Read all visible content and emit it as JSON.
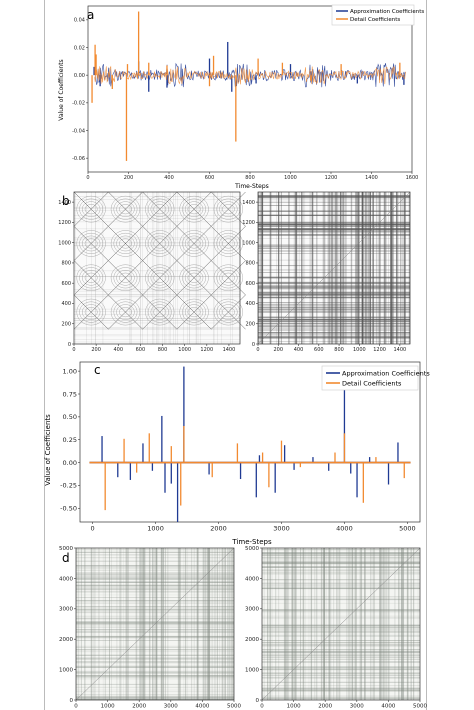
{
  "panel_letters": [
    "a",
    "b",
    "c",
    "d"
  ],
  "colors": {
    "approx": "#1f3a93",
    "detail": "#f28a30",
    "grid_dark": "#555555",
    "grid_light": "#cccccc"
  },
  "chart_data": [
    {
      "id": "a",
      "type": "line",
      "xlabel": "Time-Steps",
      "ylabel": "Value of Coefficients",
      "xlim": [
        0,
        1600
      ],
      "ylim": [
        -0.07,
        0.05
      ],
      "xticks": [
        0,
        200,
        400,
        600,
        800,
        1000,
        1200,
        1400,
        1600
      ],
      "xtick_labels": [
        "0",
        "200",
        "400",
        "600",
        "800",
        "1000",
        "1200",
        "1400",
        "1600"
      ],
      "yticks": [
        -0.06,
        -0.04,
        -0.02,
        0.0,
        0.02,
        0.04
      ],
      "ytick_labels": [
        "-0.06",
        "-0.04",
        "-0.02",
        "0.00",
        "0.02",
        "0.04"
      ],
      "legend": {
        "position": "top-right",
        "entries": [
          "Approximation Coefficients",
          "Detail Coefficients"
        ]
      },
      "series": [
        {
          "name": "Approximation Coefficients",
          "color": "#1f3a93",
          "spikes": [
            [
              30,
              0.006
            ],
            [
              60,
              -0.008
            ],
            [
              250,
              0.01
            ],
            [
              300,
              -0.012
            ],
            [
              390,
              -0.009
            ],
            [
              600,
              0.012
            ],
            [
              690,
              0.024
            ],
            [
              710,
              -0.012
            ],
            [
              830,
              -0.006
            ],
            [
              1000,
              0.008
            ],
            [
              1330,
              -0.006
            ],
            [
              1560,
              -0.007
            ]
          ],
          "baseline_noise": 0.004
        },
        {
          "name": "Detail Coefficients",
          "color": "#f28a30",
          "spikes": [
            [
              20,
              -0.02
            ],
            [
              35,
              0.022
            ],
            [
              40,
              0.015
            ],
            [
              120,
              -0.01
            ],
            [
              190,
              -0.062
            ],
            [
              195,
              0.008
            ],
            [
              250,
              0.046
            ],
            [
              300,
              0.009
            ],
            [
              390,
              0.007
            ],
            [
              600,
              -0.008
            ],
            [
              620,
              0.014
            ],
            [
              730,
              -0.048
            ],
            [
              840,
              0.012
            ],
            [
              960,
              0.009
            ],
            [
              1100,
              -0.004
            ],
            [
              1250,
              0.008
            ],
            [
              1540,
              0.009
            ]
          ],
          "baseline_noise": 0.003
        }
      ]
    },
    {
      "id": "b-left",
      "type": "heatmap",
      "xlim": [
        0,
        1500
      ],
      "ylim": [
        0,
        1500
      ],
      "xticks": [
        0,
        200,
        400,
        600,
        800,
        1000,
        1200,
        1400
      ],
      "xtick_labels": [
        "0",
        "200",
        "400",
        "600",
        "800",
        "1000",
        "1200",
        "1400"
      ],
      "yticks": [
        0,
        200,
        400,
        600,
        800,
        1000,
        1200,
        1400
      ],
      "ytick_labels": [
        "0",
        "200",
        "400",
        "600",
        "800",
        "1000",
        "1200",
        "1400"
      ],
      "pattern": "periodic-recurrence",
      "period": 310
    },
    {
      "id": "b-right",
      "type": "heatmap",
      "xlim": [
        0,
        1500
      ],
      "ylim": [
        0,
        1500
      ],
      "xticks": [
        0,
        200,
        400,
        600,
        800,
        1000,
        1200,
        1400
      ],
      "xtick_labels": [
        "0",
        "200",
        "400",
        "600",
        "800",
        "1000",
        "1200",
        "1400"
      ],
      "yticks": [
        0,
        200,
        400,
        600,
        800,
        1000,
        1200,
        1400
      ],
      "ytick_labels": [
        "0",
        "200",
        "400",
        "600",
        "800",
        "1000",
        "1200",
        "1400"
      ],
      "pattern": "stripes"
    },
    {
      "id": "c",
      "type": "line",
      "xlabel": "Time-Steps",
      "ylabel": "Value of Coefficients",
      "xlim": [
        -200,
        5200
      ],
      "ylim": [
        -0.65,
        1.1
      ],
      "xticks": [
        0,
        1000,
        2000,
        3000,
        4000,
        5000
      ],
      "xtick_labels": [
        "0",
        "1000",
        "2000",
        "3000",
        "4000",
        "5000"
      ],
      "yticks": [
        -0.5,
        -0.25,
        0.0,
        0.25,
        0.5,
        0.75,
        1.0
      ],
      "ytick_labels": [
        "-0.50",
        "-0.25",
        "0.00",
        "0.25",
        "0.50",
        "0.75",
        "1.00"
      ],
      "legend": {
        "position": "top-right",
        "entries": [
          "Approximation Coefficients",
          "Detail Coefficients"
        ]
      },
      "series": [
        {
          "name": "Approximation Coefficients",
          "color": "#1f3a93",
          "spikes": [
            [
              150,
              0.29
            ],
            [
              400,
              -0.16
            ],
            [
              600,
              -0.19
            ],
            [
              800,
              0.21
            ],
            [
              950,
              -0.09
            ],
            [
              1100,
              0.51
            ],
            [
              1150,
              -0.33
            ],
            [
              1250,
              -0.23
            ],
            [
              1350,
              -0.65
            ],
            [
              1450,
              1.05
            ],
            [
              1850,
              -0.13
            ],
            [
              2350,
              -0.18
            ],
            [
              2600,
              -0.38
            ],
            [
              2650,
              0.08
            ],
            [
              2900,
              -0.33
            ],
            [
              3050,
              0.19
            ],
            [
              3200,
              -0.08
            ],
            [
              3500,
              0.06
            ],
            [
              3750,
              -0.09
            ],
            [
              4000,
              0.84
            ],
            [
              4100,
              -0.12
            ],
            [
              4200,
              -0.38
            ],
            [
              4400,
              0.06
            ],
            [
              4700,
              -0.24
            ],
            [
              4850,
              0.22
            ]
          ]
        },
        {
          "name": "Detail Coefficients",
          "color": "#f28a30",
          "spikes": [
            [
              200,
              -0.52
            ],
            [
              500,
              0.26
            ],
            [
              700,
              -0.11
            ],
            [
              900,
              0.32
            ],
            [
              1250,
              0.18
            ],
            [
              1400,
              -0.47
            ],
            [
              1450,
              0.4
            ],
            [
              1900,
              -0.16
            ],
            [
              2300,
              0.21
            ],
            [
              2700,
              0.11
            ],
            [
              2800,
              -0.27
            ],
            [
              3000,
              0.24
            ],
            [
              3300,
              -0.05
            ],
            [
              3850,
              0.11
            ],
            [
              4000,
              0.32
            ],
            [
              4300,
              -0.44
            ],
            [
              4500,
              0.06
            ],
            [
              4950,
              -0.17
            ]
          ]
        }
      ]
    },
    {
      "id": "d-left",
      "type": "heatmap",
      "xlim": [
        0,
        5000
      ],
      "ylim": [
        0,
        5000
      ],
      "xticks": [
        0,
        1000,
        2000,
        3000,
        4000,
        5000
      ],
      "xtick_labels": [
        "0",
        "1000",
        "2000",
        "3000",
        "4000",
        "5000"
      ],
      "yticks": [
        0,
        1000,
        2000,
        3000,
        4000,
        5000
      ],
      "ytick_labels": [
        "0",
        "1000",
        "2000",
        "3000",
        "4000",
        "5000"
      ],
      "pattern": "stripes-light"
    },
    {
      "id": "d-right",
      "type": "heatmap",
      "xlim": [
        0,
        5000
      ],
      "ylim": [
        0,
        5000
      ],
      "xticks": [
        0,
        1000,
        2000,
        3000,
        4000,
        5000
      ],
      "xtick_labels": [
        "0",
        "1000",
        "2000",
        "3000",
        "4000",
        "5000"
      ],
      "yticks": [
        0,
        1000,
        2000,
        3000,
        4000,
        5000
      ],
      "ytick_labels": [
        "0",
        "1000",
        "2000",
        "3000",
        "4000",
        "5000"
      ],
      "pattern": "stripes-light"
    }
  ]
}
